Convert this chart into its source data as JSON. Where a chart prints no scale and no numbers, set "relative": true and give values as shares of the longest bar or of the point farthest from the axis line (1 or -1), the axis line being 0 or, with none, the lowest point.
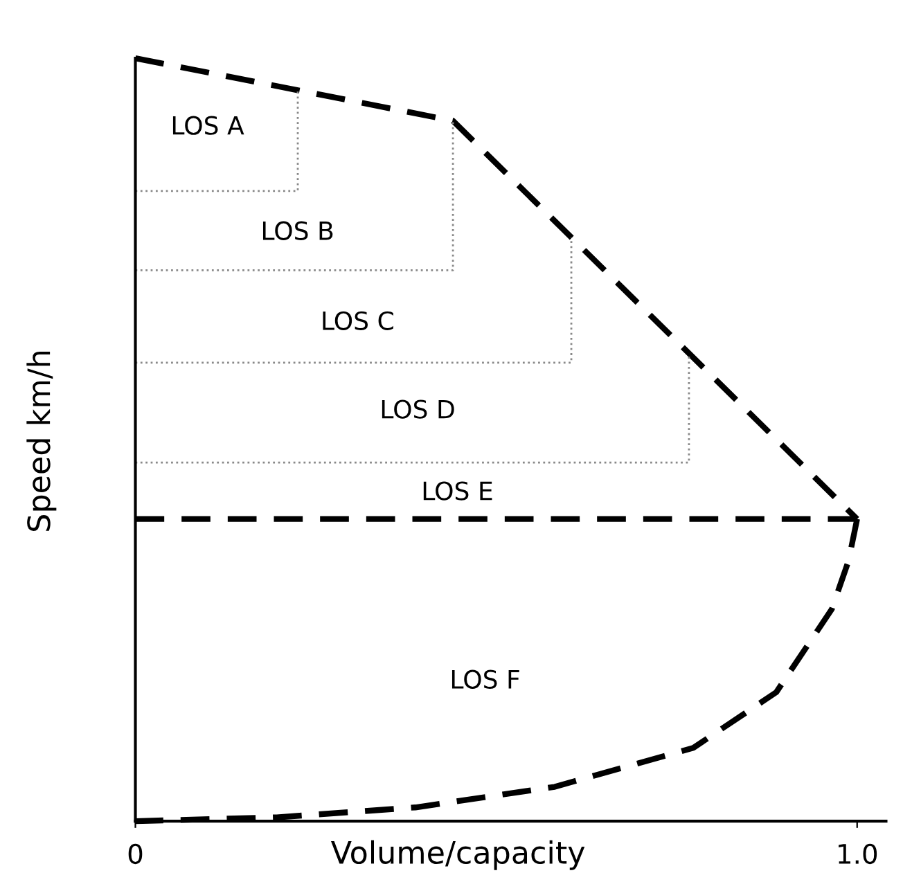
{
  "chart_data": {
    "type": "line",
    "relative": true,
    "xlabel": "Volume/capacity",
    "ylabel": "Speed km/h",
    "xlim": [
      0,
      1.04
    ],
    "xticks": [
      0,
      {
        "value": 1,
        "label": "1.0"
      }
    ],
    "grid": false,
    "legend": false,
    "marker": "none",
    "series": [
      {
        "color": "#000000",
        "line_style": "dashed",
        "x": [
          0,
          0.44,
          1
        ],
        "values": [
          1,
          0.918,
          0.396
        ]
      },
      {
        "color": "#000000",
        "line_style": "dashed",
        "x": [
          1,
          0.988,
          0.965,
          0.888,
          0.773,
          0.581,
          0.388,
          0.196,
          0
        ],
        "values": [
          0.396,
          0.341,
          0.278,
          0.169,
          0.096,
          0.045,
          0.018,
          0.005,
          0
        ]
      },
      {
        "color": "#000000",
        "line_style": "dashed",
        "x": [
          0,
          1
        ],
        "values": [
          0.396,
          0.396
        ]
      },
      {
        "color": "#888888",
        "line_style": "dotted",
        "x": [
          0,
          0.225,
          0.225
        ],
        "values": [
          0.826,
          0.826,
          0.958
        ]
      },
      {
        "color": "#888888",
        "line_style": "dotted",
        "x": [
          0,
          0.44,
          0.44
        ],
        "values": [
          0.722,
          0.722,
          0.918
        ]
      },
      {
        "color": "#888888",
        "line_style": "dotted",
        "x": [
          0,
          0.604,
          0.604
        ],
        "values": [
          0.601,
          0.601,
          0.765
        ]
      },
      {
        "color": "#888888",
        "line_style": "dotted",
        "x": [
          0,
          0.767,
          0.767
        ],
        "values": [
          0.47,
          0.47,
          0.613
        ]
      }
    ],
    "annotations": [
      "LOS A",
      "LOS B",
      "LOS C",
      "LOS D",
      "LOS E",
      "LOS F"
    ]
  }
}
